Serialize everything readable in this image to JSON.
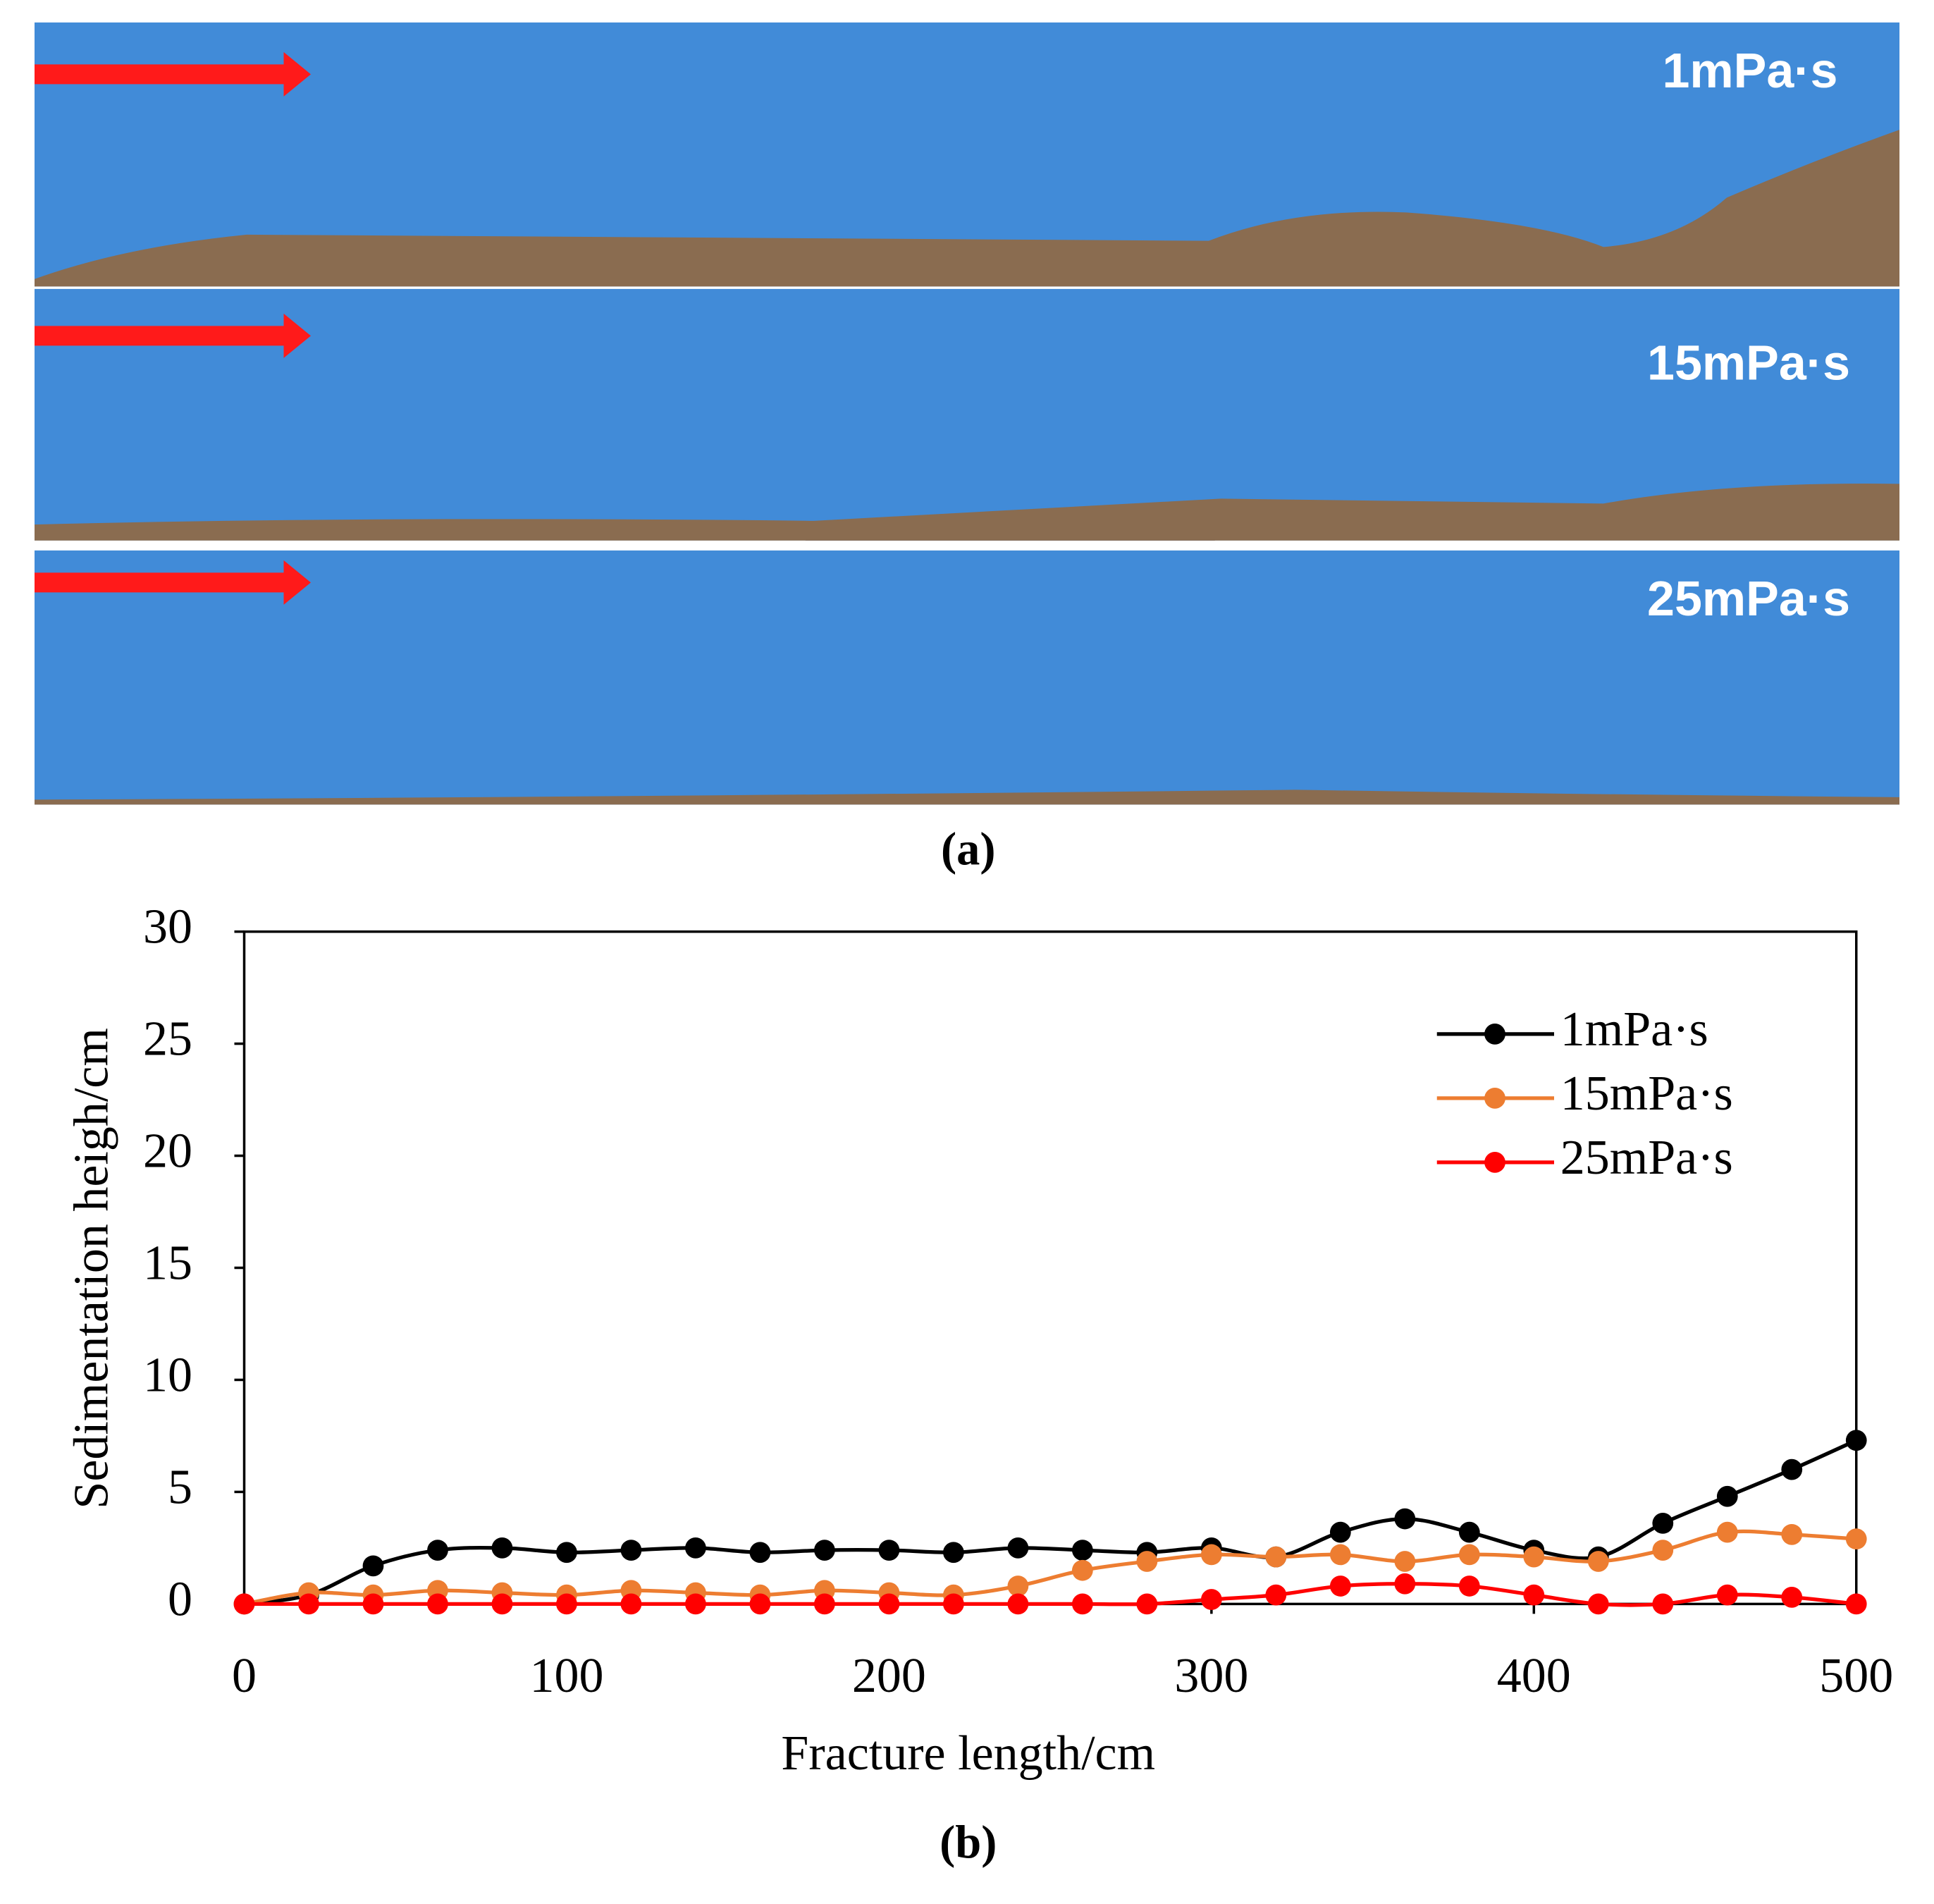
{
  "panel_a": {
    "labels": [
      "1mPa·s",
      "15mPa·s",
      "25mPa·s"
    ],
    "caption": "(a)"
  },
  "chart_data": {
    "type": "line",
    "caption": "(b)",
    "xlabel": "Fracture length/cm",
    "ylabel": "Sedimentation heigh/cm",
    "x": [
      0,
      20,
      40,
      60,
      80,
      100,
      120,
      140,
      160,
      180,
      200,
      220,
      240,
      260,
      280,
      300,
      320,
      340,
      360,
      380,
      400,
      420,
      440,
      460,
      480,
      500
    ],
    "series": [
      {
        "name": "1mPa·s",
        "color": "#000000",
        "values": [
          0,
          0.4,
          1.7,
          2.4,
          2.5,
          2.3,
          2.4,
          2.5,
          2.3,
          2.4,
          2.4,
          2.3,
          2.5,
          2.4,
          2.3,
          2.5,
          2.1,
          3.2,
          3.8,
          3.2,
          2.4,
          2.1,
          3.6,
          4.8,
          6.0,
          7.3
        ]
      },
      {
        "name": "15mPa·s",
        "color": "#ed7d31",
        "values": [
          0,
          0.5,
          0.4,
          0.6,
          0.5,
          0.4,
          0.6,
          0.5,
          0.4,
          0.6,
          0.5,
          0.4,
          0.8,
          1.5,
          1.9,
          2.2,
          2.1,
          2.2,
          1.9,
          2.2,
          2.1,
          1.9,
          2.4,
          3.2,
          3.1,
          2.9
        ]
      },
      {
        "name": "25mPa·s",
        "color": "#ff0000",
        "values": [
          0,
          0,
          0,
          0,
          0,
          0,
          0,
          0,
          0,
          0,
          0,
          0,
          0,
          0,
          0,
          0.2,
          0.4,
          0.8,
          0.9,
          0.8,
          0.4,
          0,
          0,
          0.4,
          0.3,
          0
        ]
      }
    ],
    "xlim": [
      0,
      500
    ],
    "xticks": [
      0,
      100,
      200,
      300,
      400,
      500
    ],
    "ylim": [
      0,
      30
    ],
    "yticks": [
      0,
      5,
      10,
      15,
      20,
      25,
      30
    ],
    "legend": "upper right"
  }
}
